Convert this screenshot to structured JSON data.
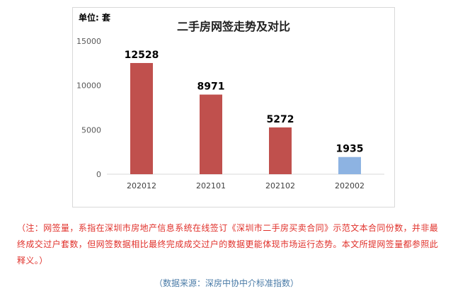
{
  "chart_data": {
    "type": "bar",
    "title": "二手房网签走势及对比",
    "unit_label": "单位: 套",
    "categories": [
      "202012",
      "202101",
      "202102",
      "202002"
    ],
    "values": [
      12528,
      8971,
      5272,
      1935
    ],
    "bar_colors": [
      "#c0504d",
      "#c0504d",
      "#c0504d",
      "#8db3e2"
    ],
    "ylim": [
      0,
      15000
    ],
    "yticks": [
      0,
      5000,
      10000,
      15000
    ],
    "grid": false,
    "legend": "none"
  },
  "note": "（注：网签量，系指在深圳市房地产信息系统在线签订《深圳市二手房买卖合同》示范文本合同份数，并非最终成交过户套数，但网签数据相比最终完成成交过户的数据更能体现市场运行态势。本文所提网签量都参照此释义。）",
  "source": "（数据来源：深房中协中介标准指数）"
}
